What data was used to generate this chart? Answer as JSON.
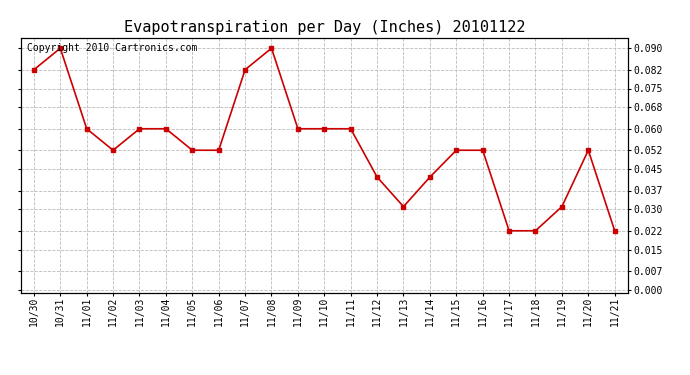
{
  "title": "Evapotranspiration per Day (Inches) 20101122",
  "copyright_text": "Copyright 2010 Cartronics.com",
  "labels": [
    "10/30",
    "10/31",
    "11/01",
    "11/02",
    "11/03",
    "11/04",
    "11/05",
    "11/06",
    "11/07",
    "11/08",
    "11/09",
    "11/10",
    "11/11",
    "11/12",
    "11/13",
    "11/14",
    "11/15",
    "11/16",
    "11/17",
    "11/18",
    "11/19",
    "11/20",
    "11/21"
  ],
  "values": [
    0.082,
    0.09,
    0.06,
    0.052,
    0.06,
    0.06,
    0.052,
    0.052,
    0.082,
    0.09,
    0.06,
    0.06,
    0.06,
    0.042,
    0.031,
    0.042,
    0.052,
    0.052,
    0.022,
    0.022,
    0.031,
    0.052,
    0.022
  ],
  "line_color": "#cc0000",
  "marker": "s",
  "marker_size": 3,
  "background_color": "#ffffff",
  "grid_color": "#bbbbbb",
  "yticks": [
    0.0,
    0.007,
    0.015,
    0.022,
    0.03,
    0.037,
    0.045,
    0.052,
    0.06,
    0.068,
    0.075,
    0.082,
    0.09
  ],
  "ylim": [
    -0.001,
    0.094
  ],
  "title_fontsize": 11,
  "tick_fontsize": 7,
  "copyright_fontsize": 7
}
